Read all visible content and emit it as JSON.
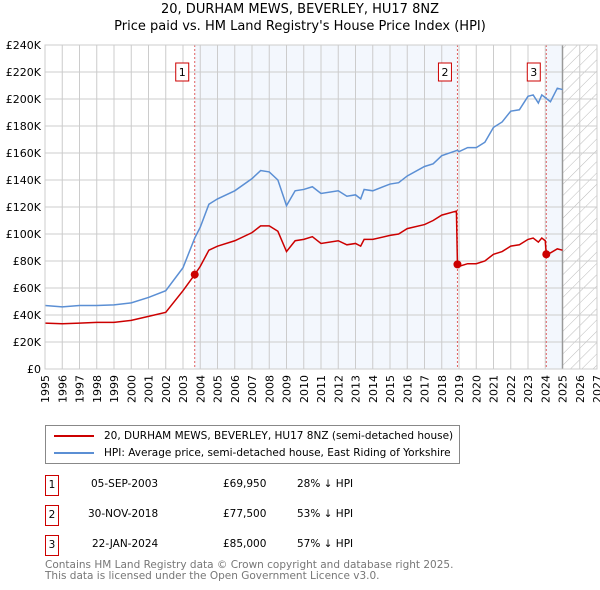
{
  "chart_data": {
    "type": "line",
    "title": "20, DURHAM MEWS, BEVERLEY, HU17 8NZ",
    "subtitle": "Price paid vs. HM Land Registry's House Price Index (HPI)",
    "xlim": [
      1995,
      2027
    ],
    "ylim": [
      0,
      240000
    ],
    "x_ticks": [
      "1995",
      "1996",
      "1997",
      "1998",
      "1999",
      "2000",
      "2001",
      "2002",
      "2003",
      "2004",
      "2005",
      "2006",
      "2007",
      "2008",
      "2009",
      "2010",
      "2011",
      "2012",
      "2013",
      "2014",
      "2015",
      "2016",
      "2017",
      "2018",
      "2019",
      "2020",
      "2021",
      "2022",
      "2023",
      "2024",
      "2025",
      "2026",
      "2027"
    ],
    "y_ticks": [
      "£0",
      "£20K",
      "£40K",
      "£60K",
      "£80K",
      "£100K",
      "£120K",
      "£140K",
      "£160K",
      "£180K",
      "£200K",
      "£220K",
      "£240K"
    ],
    "grid": true,
    "forecast_hatch_from": 2025.0,
    "series": [
      {
        "name": "20, DURHAM MEWS, BEVERLEY, HU17 8NZ (semi-detached house)",
        "color": "#cc0000",
        "x": [
          1995,
          1996,
          1997,
          1998,
          1999,
          2000,
          2001,
          2002,
          2003,
          2003.68,
          2004,
          2004.5,
          2005,
          2006,
          2007,
          2007.5,
          2008,
          2008.5,
          2009,
          2009.5,
          2010,
          2010.5,
          2011,
          2012,
          2012.5,
          2013,
          2013.3,
          2013.5,
          2014,
          2015,
          2015.5,
          2016,
          2017,
          2017.5,
          2018,
          2018.85,
          2018.91,
          2019,
          2019.5,
          2020,
          2020.5,
          2021,
          2021.5,
          2022,
          2022.5,
          2023,
          2023.3,
          2023.6,
          2023.8,
          2024.0,
          2024.06,
          2024.3,
          2024.7,
          2025
        ],
        "y": [
          34,
          33.5,
          34,
          34.5,
          34.5,
          36,
          39,
          42,
          58,
          69.95,
          76,
          88,
          91,
          95,
          101,
          106,
          106,
          102,
          87,
          95,
          96,
          98,
          93,
          95,
          92,
          93,
          91,
          96,
          96,
          99,
          100,
          104,
          107,
          110,
          114,
          117,
          77.5,
          76,
          78,
          78,
          80,
          85,
          87,
          91,
          92,
          96,
          97,
          94,
          97,
          95,
          85,
          86,
          89,
          88
        ]
      },
      {
        "name": "HPI: Average price, semi-detached house, East Riding of Yorkshire",
        "color": "#5b8fd4",
        "x": [
          1995,
          1996,
          1997,
          1998,
          1999,
          2000,
          2001,
          2002,
          2003,
          2003.68,
          2004,
          2004.5,
          2005,
          2006,
          2007,
          2007.5,
          2008,
          2008.5,
          2009,
          2009.5,
          2010,
          2010.5,
          2011,
          2012,
          2012.5,
          2013,
          2013.3,
          2013.5,
          2014,
          2015,
          2015.5,
          2016,
          2017,
          2017.5,
          2018,
          2018.9,
          2019,
          2019.5,
          2020,
          2020.5,
          2021,
          2021.5,
          2022,
          2022.5,
          2023,
          2023.3,
          2023.6,
          2023.8,
          2024,
          2024.3,
          2024.7,
          2025
        ],
        "y": [
          47,
          46,
          47,
          47,
          47.5,
          49,
          53,
          58,
          75,
          97,
          105,
          122,
          126,
          132,
          141,
          147,
          146,
          140,
          121,
          132,
          133,
          135,
          130,
          132,
          128,
          129,
          126,
          133,
          132,
          137,
          138,
          143,
          150,
          152,
          158,
          162,
          161,
          164,
          164,
          168,
          179,
          183,
          191,
          192,
          202,
          203,
          197,
          203,
          201,
          198,
          208,
          207
        ]
      }
    ],
    "y_unit": "thousands GBP",
    "sales": [
      {
        "n": "1",
        "x": 2003.68,
        "date": "05-SEP-2003",
        "price": "£69,950",
        "value": 69.95,
        "hpi": "28% ↓ HPI"
      },
      {
        "n": "2",
        "x": 2018.91,
        "date": "30-NOV-2018",
        "price": "£77,500",
        "value": 77.5,
        "hpi": "53% ↓ HPI"
      },
      {
        "n": "3",
        "x": 2024.06,
        "date": "22-JAN-2024",
        "price": "£85,000",
        "value": 85,
        "hpi": "57% ↓ HPI"
      }
    ]
  },
  "footer": {
    "line1": "Contains HM Land Registry data © Crown copyright and database right 2025.",
    "line2": "This data is licensed under the Open Government Licence v3.0."
  }
}
